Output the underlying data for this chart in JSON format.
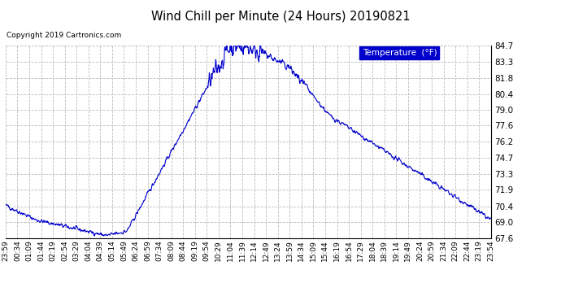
{
  "title": "Wind Chill per Minute (24 Hours) 20190821",
  "copyright": "Copyright 2019 Cartronics.com",
  "legend_label": "Temperature  (°F)",
  "line_color": "#0000cc",
  "background_color": "#ffffff",
  "grid_color": "#bbbbbb",
  "ylim": [
    67.6,
    84.7
  ],
  "yticks": [
    67.6,
    69.0,
    70.4,
    71.9,
    73.3,
    74.7,
    76.2,
    77.6,
    79.0,
    80.4,
    81.8,
    83.3,
    84.7
  ],
  "xtick_labels": [
    "23:59",
    "00:34",
    "01:09",
    "01:44",
    "02:19",
    "02:54",
    "03:29",
    "04:04",
    "04:39",
    "05:14",
    "05:49",
    "06:24",
    "06:59",
    "07:34",
    "08:09",
    "08:44",
    "09:19",
    "09:54",
    "10:29",
    "11:04",
    "11:39",
    "12:14",
    "12:49",
    "13:24",
    "13:59",
    "14:34",
    "15:09",
    "15:44",
    "16:19",
    "16:54",
    "17:29",
    "18:04",
    "18:39",
    "19:14",
    "19:49",
    "20:24",
    "20:59",
    "21:34",
    "22:09",
    "22:44",
    "23:19",
    "23:54"
  ],
  "n_points": 1440,
  "curve_segments": {
    "t0_val": 70.5,
    "t90_val": 69.2,
    "t300_val": 67.8,
    "t360_val": 68.2,
    "t400_val": 68.5,
    "t660_val": 84.4,
    "t700_val": 84.7,
    "t740_val": 84.4,
    "t840_val": 82.8,
    "t960_val": 78.5,
    "t1440_val": 69.2
  }
}
